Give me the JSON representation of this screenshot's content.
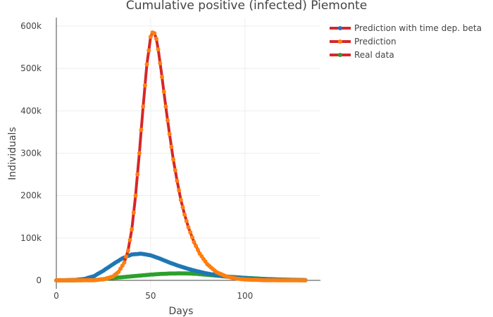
{
  "chart_data": {
    "type": "line",
    "title": "Cumulative positive (infected) Piemonte",
    "xlabel": "Days",
    "ylabel": "Individuals",
    "xlim": [
      0,
      140
    ],
    "ylim": [
      -20000,
      620000
    ],
    "x_ticks": [
      0,
      50,
      100
    ],
    "x_tick_labels": [
      "0",
      "50",
      "100"
    ],
    "y_ticks": [
      0,
      100000,
      200000,
      300000,
      400000,
      500000,
      600000
    ],
    "y_tick_labels": [
      "0",
      "100k",
      "200k",
      "300k",
      "400k",
      "500k",
      "600k"
    ],
    "grid": true,
    "legend_position": "top-right",
    "series": [
      {
        "name": "Prediction with time dep. beta",
        "color": "#1f77b4",
        "line_color": "#d62728",
        "x": [
          0,
          10,
          15,
          20,
          25,
          30,
          35,
          40,
          45,
          50,
          55,
          60,
          65,
          70,
          75,
          80,
          90,
          100,
          110,
          120,
          132
        ],
        "values": [
          0,
          1000,
          3500,
          10000,
          23000,
          38000,
          52000,
          61000,
          63000,
          59000,
          51000,
          42000,
          34000,
          27000,
          21000,
          16000,
          9000,
          5000,
          2600,
          1300,
          500
        ]
      },
      {
        "name": "Prediction",
        "color": "#ff7f0e",
        "line_color": "#d62728",
        "x": [
          0,
          20,
          25,
          30,
          33,
          36,
          38,
          40,
          42,
          44,
          46,
          48,
          50,
          51,
          52,
          53,
          54,
          56,
          58,
          60,
          62,
          64,
          66,
          68,
          70,
          73,
          76,
          80,
          85,
          90,
          95,
          100,
          110,
          120,
          132
        ],
        "values": [
          0,
          500,
          2500,
          9000,
          20000,
          42000,
          70000,
          120000,
          200000,
          300000,
          410000,
          510000,
          575000,
          585000,
          583000,
          570000,
          545000,
          480000,
          410000,
          345000,
          285000,
          235000,
          190000,
          155000,
          125000,
          90000,
          63000,
          38000,
          19000,
          9500,
          4500,
          2000,
          400,
          80,
          10
        ]
      },
      {
        "name": "Real data",
        "color": "#2ca02c",
        "line_color": "#d62728",
        "x": [
          0,
          10,
          20,
          25,
          30,
          35,
          40,
          45,
          50,
          55,
          60,
          65,
          70,
          75,
          80,
          85,
          90,
          100,
          110,
          120,
          132
        ],
        "values": [
          0,
          0,
          500,
          3000,
          5500,
          7500,
          9500,
          11500,
          13500,
          15000,
          16000,
          16500,
          16300,
          15000,
          13000,
          11000,
          9000,
          6000,
          3500,
          1800,
          600
        ]
      }
    ]
  }
}
